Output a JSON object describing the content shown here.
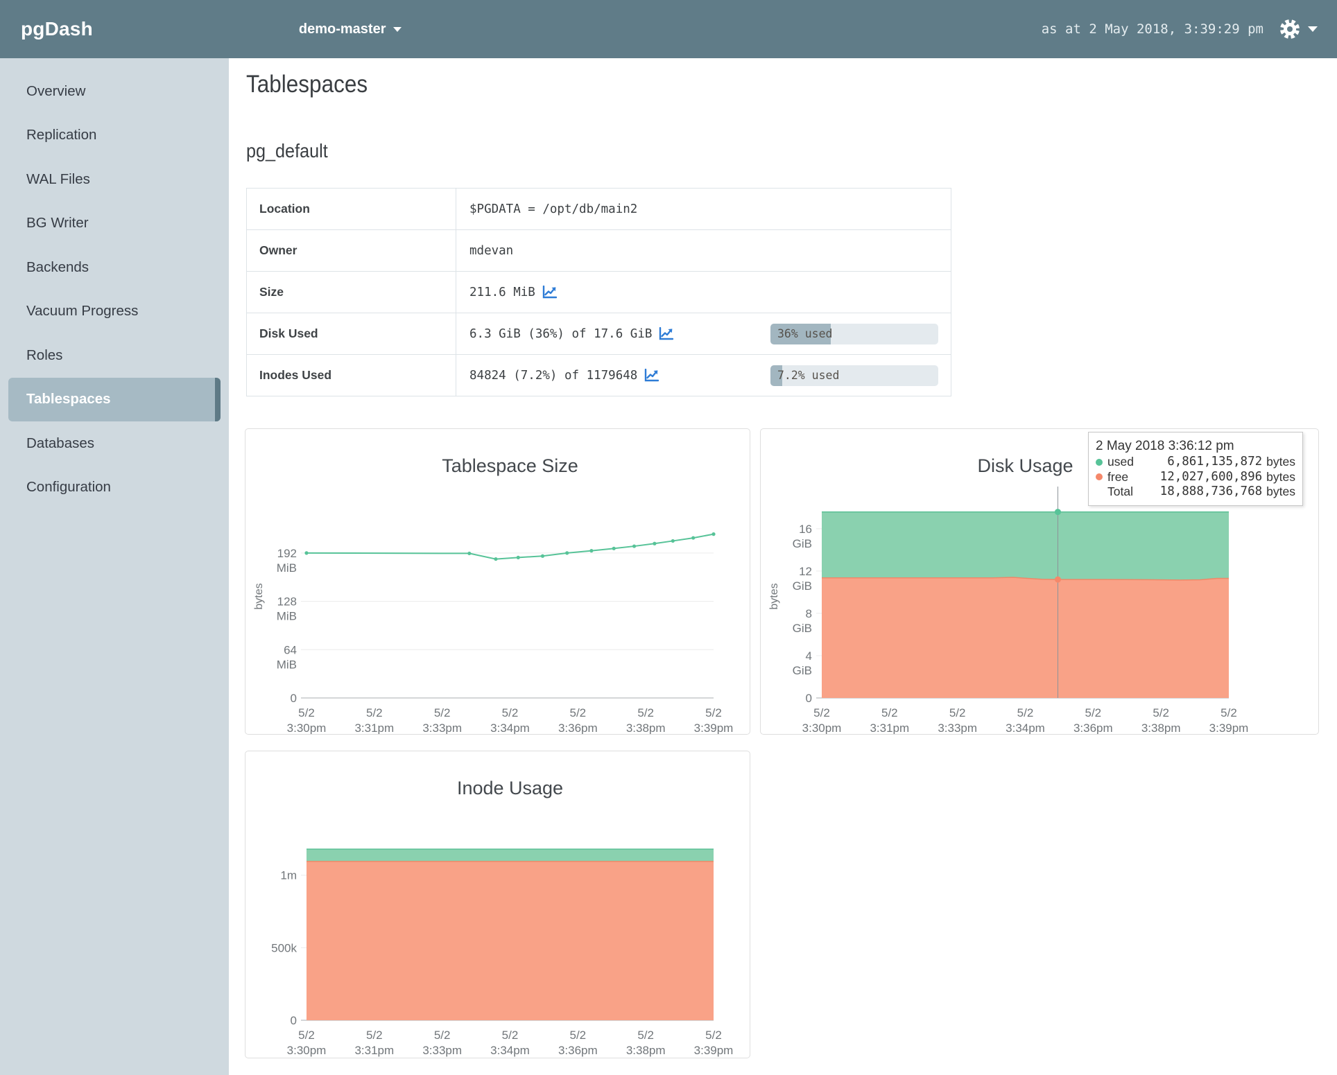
{
  "nav": {
    "brand": "pgDash",
    "server_selector": "demo-master",
    "timestamp": "as at 2 May 2018, 3:39:29 pm"
  },
  "sidebar": {
    "items": [
      {
        "label": "Overview"
      },
      {
        "label": "Replication"
      },
      {
        "label": "WAL Files"
      },
      {
        "label": "BG Writer"
      },
      {
        "label": "Backends"
      },
      {
        "label": "Vacuum Progress"
      },
      {
        "label": "Roles"
      },
      {
        "label": "Tablespaces",
        "active": true
      },
      {
        "label": "Databases"
      },
      {
        "label": "Configuration"
      }
    ]
  },
  "page": {
    "title": "Tablespaces",
    "section": "pg_default"
  },
  "table": {
    "rows": [
      {
        "label": "Location",
        "value": "$PGDATA = /opt/db/main2"
      },
      {
        "label": "Owner",
        "value": "mdevan"
      },
      {
        "label": "Size",
        "value": "211.6 MiB"
      },
      {
        "label": "Disk Used",
        "value": "6.3 GiB (36%) of 17.6 GiB",
        "bar": {
          "percent": 36,
          "text": "36% used"
        }
      },
      {
        "label": "Inodes Used",
        "value": "84824 (7.2%) of 1179648",
        "bar": {
          "percent": 7.2,
          "text": "7.2% used"
        }
      }
    ]
  },
  "tooltip": {
    "title": "2 May 2018 3:36:12 pm",
    "rows": [
      {
        "dot": "#57c398",
        "label": "used",
        "value": "6,861,135,872",
        "unit": "bytes"
      },
      {
        "dot": "#f5886a",
        "label": "free",
        "value": "12,027,600,896",
        "unit": "bytes"
      },
      {
        "dot": null,
        "label": "Total",
        "value": "18,888,736,768",
        "unit": "bytes"
      }
    ]
  },
  "colors": {
    "nav_bg": "#607c88",
    "sidebar_bg": "#cfd9df",
    "accent_green": "#57c398",
    "accent_salmon": "#f9a287",
    "link_blue": "#2e7cd6",
    "bar_fill": "#a2b6c0"
  },
  "chart_data": [
    {
      "key": "tablespace_size",
      "type": "line",
      "title": "Tablespace Size",
      "ylabel": "bytes",
      "unit": "MiB",
      "ymax": 269,
      "yticks": [
        {
          "v": 192,
          "lines": [
            "192",
            "MiB"
          ]
        },
        {
          "v": 128,
          "lines": [
            "128",
            "MiB"
          ]
        },
        {
          "v": 64,
          "lines": [
            "64",
            "MiB"
          ]
        },
        {
          "v": 0,
          "lines": [
            "0"
          ]
        }
      ],
      "xticks": [
        [
          "5/2",
          "3:30pm"
        ],
        [
          "5/2",
          "3:31pm"
        ],
        [
          "5/2",
          "3:33pm"
        ],
        [
          "5/2",
          "3:34pm"
        ],
        [
          "5/2",
          "3:36pm"
        ],
        [
          "5/2",
          "3:38pm"
        ],
        [
          "5/2",
          "3:39pm"
        ]
      ],
      "series": [
        {
          "name": "size",
          "color": "#57c398",
          "points": [
            [
              0,
              192
            ],
            [
              0.4,
              191.5
            ],
            [
              0.465,
              184
            ],
            [
              0.52,
              186
            ],
            [
              0.58,
              188
            ],
            [
              0.64,
              192
            ],
            [
              0.7,
              195
            ],
            [
              0.755,
              198
            ],
            [
              0.805,
              201
            ],
            [
              0.855,
              204.5
            ],
            [
              0.9,
              208
            ],
            [
              0.95,
              212
            ],
            [
              1,
              217
            ]
          ]
        }
      ]
    },
    {
      "key": "disk_usage",
      "type": "area-stack",
      "title": "Disk Usage",
      "ylabel": "bytes",
      "unit": "GiB",
      "ymax": 19.2,
      "yticks": [
        {
          "v": 16,
          "lines": [
            "16",
            "GiB"
          ]
        },
        {
          "v": 12,
          "lines": [
            "12",
            "GiB"
          ]
        },
        {
          "v": 8,
          "lines": [
            "8",
            "GiB"
          ]
        },
        {
          "v": 4,
          "lines": [
            "4",
            "GiB"
          ]
        },
        {
          "v": 0,
          "lines": [
            "0"
          ]
        }
      ],
      "xticks": [
        [
          "5/2",
          "3:30pm"
        ],
        [
          "5/2",
          "3:31pm"
        ],
        [
          "5/2",
          "3:33pm"
        ],
        [
          "5/2",
          "3:34pm"
        ],
        [
          "5/2",
          "3:36pm"
        ],
        [
          "5/2",
          "3:38pm"
        ],
        [
          "5/2",
          "3:39pm"
        ]
      ],
      "stack": {
        "bottom": {
          "name": "free",
          "fill": "#f9a287",
          "line": "#ef8868",
          "points": [
            [
              0,
              11.35
            ],
            [
              0.2,
              11.35
            ],
            [
              0.35,
              11.35
            ],
            [
              0.42,
              11.35
            ],
            [
              0.47,
              11.4
            ],
            [
              0.5,
              11.32
            ],
            [
              0.54,
              11.22
            ],
            [
              0.58,
              11.2
            ],
            [
              0.7,
              11.2
            ],
            [
              0.8,
              11.18
            ],
            [
              0.88,
              11.15
            ],
            [
              0.93,
              11.17
            ],
            [
              0.97,
              11.3
            ],
            [
              1,
              11.3
            ]
          ]
        },
        "total": {
          "name": "used",
          "fill": "#8ad1af",
          "line": "#5abf94",
          "points": [
            [
              0,
              17.59
            ],
            [
              1,
              17.59
            ]
          ]
        }
      },
      "crosshair": {
        "frac": 0.58,
        "dots": [
          {
            "v": 11.2,
            "color": "#f5886a"
          },
          {
            "v": 17.59,
            "color": "#57c398"
          }
        ]
      }
    },
    {
      "key": "inode_usage",
      "type": "area-stack",
      "title": "Inode Usage",
      "ylabel": "",
      "unit": "",
      "ymax": 1400000,
      "yticks": [
        {
          "v": 1000000,
          "lines": [
            "1m"
          ]
        },
        {
          "v": 500000,
          "lines": [
            "500k"
          ]
        },
        {
          "v": 0,
          "lines": [
            "0"
          ]
        }
      ],
      "xticks": [
        [
          "5/2",
          "3:30pm"
        ],
        [
          "5/2",
          "3:31pm"
        ],
        [
          "5/2",
          "3:33pm"
        ],
        [
          "5/2",
          "3:34pm"
        ],
        [
          "5/2",
          "3:36pm"
        ],
        [
          "5/2",
          "3:38pm"
        ],
        [
          "5/2",
          "3:39pm"
        ]
      ],
      "stack": {
        "bottom": {
          "name": "free",
          "fill": "#f9a287",
          "line": "#ef8868",
          "points": [
            [
              0,
              1094824
            ],
            [
              1,
              1094824
            ]
          ]
        },
        "total": {
          "name": "used",
          "fill": "#8ad1af",
          "line": "#5abf94",
          "points": [
            [
              0,
              1179648
            ],
            [
              1,
              1179648
            ]
          ]
        }
      }
    }
  ]
}
